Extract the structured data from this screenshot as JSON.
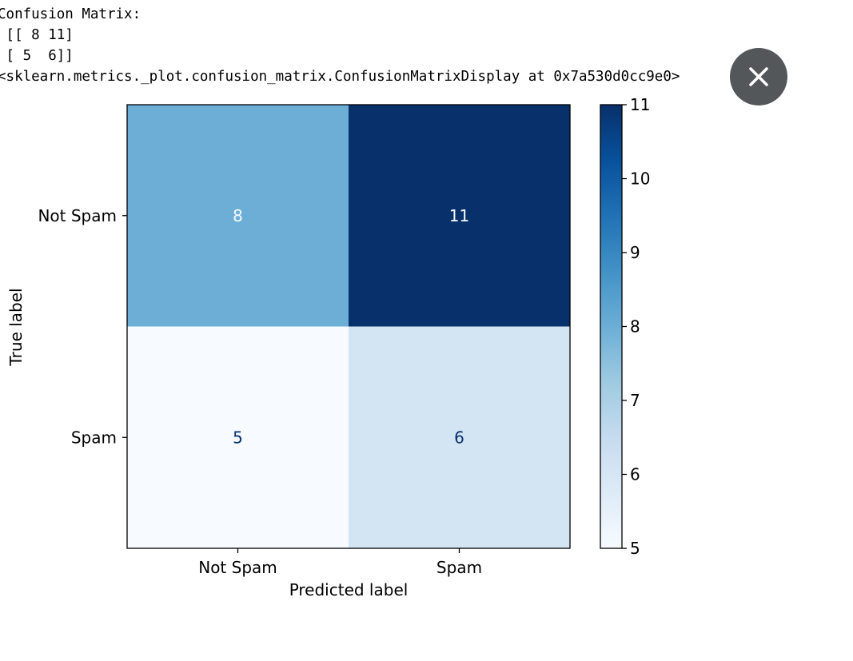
{
  "console_output": {
    "lines": [
      "Confusion Matrix:",
      " [[ 8 11]",
      " [ 5  6]]",
      "<sklearn.metrics._plot.confusion_matrix.ConfusionMatrixDisplay at 0x7a530d0cc9e0>"
    ]
  },
  "close_button": {
    "icon": "close-icon"
  },
  "chart_data": {
    "type": "heatmap",
    "title": "",
    "xlabel": "Predicted label",
    "ylabel": "True label",
    "x_categories": [
      "Not Spam",
      "Spam"
    ],
    "y_categories": [
      "Not Spam",
      "Spam"
    ],
    "values": [
      [
        8,
        11
      ],
      [
        5,
        6
      ]
    ],
    "cell_labels": [
      [
        "8",
        "11"
      ],
      [
        "5",
        "6"
      ]
    ],
    "colormap": "Blues",
    "colorbar": {
      "min": 5,
      "max": 11,
      "ticks": [
        5,
        6,
        7,
        8,
        9,
        10,
        11
      ],
      "tick_labels": [
        "5",
        "6",
        "7",
        "8",
        "9",
        "10",
        "11"
      ]
    },
    "cell_colors": [
      [
        "#6caed6",
        "#08306b"
      ],
      [
        "#f7fbff",
        "#d3e4f3"
      ]
    ],
    "cell_text_colors": [
      [
        "#f7fbff",
        "#f7fbff"
      ],
      [
        "#08306b",
        "#08306b"
      ]
    ],
    "grid": false
  }
}
